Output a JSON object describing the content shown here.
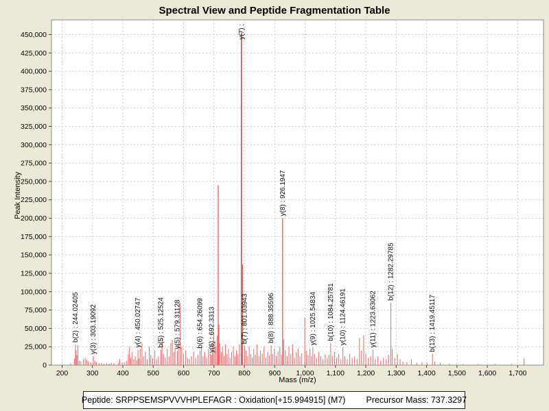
{
  "title": "Spectral View and Peptide Fragmentation Table",
  "footer": {
    "peptide_text": "Peptide: SRPPSEMSPVVVHPLEFAGR : Oxidation[+15.994915] (M7)",
    "precursor_text": "Precursor Mass: 737.3297"
  },
  "colors": {
    "background": "#ece9d8",
    "plot_background": "#ffffff",
    "grid": "#cbcbcb",
    "frame": "#8a8a8a",
    "tick": "#444444",
    "peak_strong": "#ee3a3a",
    "peak_light": "#f66e6e",
    "annotation_text": "#111111"
  },
  "chart_data": {
    "type": "bar",
    "title": "Spectral View and Peptide Fragmentation Table",
    "xlabel": "Mass (m/z)",
    "ylabel": "Peak Intensity",
    "xlim": [
      165,
      1785
    ],
    "ylim": [
      0,
      470000
    ],
    "x_axis": {
      "min": 200,
      "max": 1700,
      "tick_step": 100,
      "label": "Mass (m/z)"
    },
    "y_axis": {
      "min": 0,
      "max": 450000,
      "tick_step": 25000,
      "label": "Peak Intensity"
    },
    "grid": true,
    "annotated_peaks": [
      {
        "label": "b(2) : 244.02405",
        "mz": 244.02405,
        "intensity": 28000
      },
      {
        "label": "y(3) : 303.19092",
        "mz": 303.19092,
        "intensity": 12000
      },
      {
        "label": "y(4) : 450.02747",
        "mz": 450.02747,
        "intensity": 21000
      },
      {
        "label": "b(5) : 525.12524",
        "mz": 525.12524,
        "intensity": 21000
      },
      {
        "label": "y(5) : 579.31128",
        "mz": 579.31128,
        "intensity": 19000
      },
      {
        "label": "b(6) : 654.26099",
        "mz": 654.26099,
        "intensity": 20000
      },
      {
        "label": "y(6) : 692.3313",
        "mz": 692.3313,
        "intensity": 14000
      },
      {
        "label": "y(7) :",
        "mz": 790.4,
        "intensity": 452000
      },
      {
        "label": "b(7) : 801.03943",
        "mz": 801.03943,
        "intensity": 26000
      },
      {
        "label": "b(8) : 888.35596",
        "mz": 888.35596,
        "intensity": 27000
      },
      {
        "label": "y(8) : 926.1947",
        "mz": 926.1947,
        "intensity": 200000
      },
      {
        "label": "y(9) : 1025.54834",
        "mz": 1025.54834,
        "intensity": 24000
      },
      {
        "label": "b(10) : 1084.25781",
        "mz": 1084.25781,
        "intensity": 30000
      },
      {
        "label": "y(10) : 1124.46191",
        "mz": 1124.46191,
        "intensity": 24000
      },
      {
        "label": "y(11) : 1223.63062",
        "mz": 1223.63062,
        "intensity": 21000
      },
      {
        "label": "b(12) : 1282.29785",
        "mz": 1282.29785,
        "intensity": 85000
      },
      {
        "label": "b(13) : 1419.45117",
        "mz": 1419.45117,
        "intensity": 15000
      }
    ],
    "peaks": [
      [
        228,
        2500
      ],
      [
        241,
        9000
      ],
      [
        246,
        20000
      ],
      [
        248.5,
        13000
      ],
      [
        252,
        27000
      ],
      [
        257,
        6000
      ],
      [
        262,
        5000
      ],
      [
        270,
        8000
      ],
      [
        276,
        10000
      ],
      [
        281,
        7000
      ],
      [
        286,
        5000
      ],
      [
        295,
        4000
      ],
      [
        308,
        6000
      ],
      [
        313,
        4000
      ],
      [
        322,
        2500
      ],
      [
        330,
        3000
      ],
      [
        338,
        2000
      ],
      [
        347,
        2500
      ],
      [
        355,
        2000
      ],
      [
        362,
        3000
      ],
      [
        371,
        2500
      ],
      [
        385,
        3000
      ],
      [
        390,
        8000
      ],
      [
        398,
        3500
      ],
      [
        406,
        4000
      ],
      [
        413,
        6000
      ],
      [
        418,
        15000
      ],
      [
        422,
        25000
      ],
      [
        425.5,
        10000
      ],
      [
        430,
        18000
      ],
      [
        436,
        8000
      ],
      [
        441,
        12000
      ],
      [
        446,
        7000
      ],
      [
        453,
        9000
      ],
      [
        457,
        22000
      ],
      [
        463,
        30000
      ],
      [
        468,
        12000
      ],
      [
        474,
        18000
      ],
      [
        480,
        8000
      ],
      [
        487,
        25000
      ],
      [
        492,
        14000
      ],
      [
        498,
        10000
      ],
      [
        505,
        20000
      ],
      [
        511,
        8000
      ],
      [
        517,
        12000
      ],
      [
        529,
        37000
      ],
      [
        534,
        15000
      ],
      [
        540,
        10000
      ],
      [
        546,
        22000
      ],
      [
        552,
        12000
      ],
      [
        558,
        30000
      ],
      [
        563,
        34000
      ],
      [
        568,
        18000
      ],
      [
        572,
        24000
      ],
      [
        583,
        30000
      ],
      [
        589,
        84000
      ],
      [
        594,
        25000
      ],
      [
        600,
        15000
      ],
      [
        607,
        20000
      ],
      [
        613,
        10000
      ],
      [
        619,
        8000
      ],
      [
        626,
        12000
      ],
      [
        633,
        18000
      ],
      [
        640,
        10000
      ],
      [
        647,
        14000
      ],
      [
        659,
        25000
      ],
      [
        664,
        12000
      ],
      [
        670,
        18000
      ],
      [
        676,
        10000
      ],
      [
        682,
        22000
      ],
      [
        688,
        15000
      ],
      [
        695,
        30000
      ],
      [
        699,
        45000
      ],
      [
        703,
        33000
      ],
      [
        707,
        25000
      ],
      [
        711,
        40000
      ],
      [
        714,
        245000
      ],
      [
        716.5,
        55000
      ],
      [
        719,
        30000
      ],
      [
        724,
        18000
      ],
      [
        728,
        25000
      ],
      [
        733,
        12000
      ],
      [
        738,
        28000
      ],
      [
        743,
        15000
      ],
      [
        748,
        22000
      ],
      [
        753,
        10000
      ],
      [
        758,
        18000
      ],
      [
        764,
        25000
      ],
      [
        769,
        12000
      ],
      [
        774,
        20000
      ],
      [
        779,
        15000
      ],
      [
        784,
        28000
      ],
      [
        794.5,
        137000
      ],
      [
        806,
        20000
      ],
      [
        811,
        12000
      ],
      [
        816,
        25000
      ],
      [
        821,
        15000
      ],
      [
        826,
        10000
      ],
      [
        831,
        22000
      ],
      [
        836,
        14000
      ],
      [
        842,
        28000
      ],
      [
        848,
        12000
      ],
      [
        853,
        20000
      ],
      [
        859,
        15000
      ],
      [
        865,
        25000
      ],
      [
        871,
        10000
      ],
      [
        877,
        18000
      ],
      [
        883,
        13000
      ],
      [
        893,
        15000
      ],
      [
        899,
        22000
      ],
      [
        905,
        12000
      ],
      [
        911,
        18000
      ],
      [
        917,
        25000
      ],
      [
        922,
        14000
      ],
      [
        929.5,
        35000
      ],
      [
        935,
        20000
      ],
      [
        941,
        12000
      ],
      [
        947,
        25000
      ],
      [
        953,
        15000
      ],
      [
        959,
        28000
      ],
      [
        965,
        10000
      ],
      [
        971,
        18000
      ],
      [
        977,
        22000
      ],
      [
        983,
        12000
      ],
      [
        989,
        16000
      ],
      [
        999,
        65000
      ],
      [
        1004,
        20000
      ],
      [
        1010,
        14000
      ],
      [
        1016,
        22000
      ],
      [
        1021,
        12000
      ],
      [
        1031,
        15000
      ],
      [
        1038,
        10000
      ],
      [
        1045,
        18000
      ],
      [
        1052,
        12000
      ],
      [
        1059,
        8000
      ],
      [
        1066,
        15000
      ],
      [
        1073,
        10000
      ],
      [
        1079,
        14000
      ],
      [
        1090,
        12000
      ],
      [
        1097,
        18000
      ],
      [
        1104,
        10000
      ],
      [
        1111,
        15000
      ],
      [
        1118,
        8000
      ],
      [
        1131,
        12000
      ],
      [
        1139,
        8000
      ],
      [
        1147,
        15000
      ],
      [
        1155,
        10000
      ],
      [
        1163,
        12000
      ],
      [
        1171,
        8000
      ],
      [
        1179,
        37000
      ],
      [
        1186,
        20000
      ],
      [
        1193,
        40000
      ],
      [
        1200,
        15000
      ],
      [
        1208,
        10000
      ],
      [
        1216,
        12000
      ],
      [
        1231,
        8000
      ],
      [
        1240,
        12000
      ],
      [
        1249,
        6000
      ],
      [
        1258,
        10000
      ],
      [
        1267,
        8000
      ],
      [
        1275,
        14000
      ],
      [
        1287,
        22000
      ],
      [
        1295,
        10000
      ],
      [
        1304,
        15000
      ],
      [
        1313,
        8000
      ],
      [
        1322,
        5000
      ],
      [
        1335,
        4000
      ],
      [
        1350,
        8000
      ],
      [
        1368,
        3000
      ],
      [
        1385,
        4000
      ],
      [
        1402,
        3000
      ],
      [
        1427,
        5000
      ],
      [
        1445,
        3000
      ],
      [
        1475,
        2000
      ],
      [
        1520,
        1500
      ],
      [
        1570,
        1500
      ],
      [
        1625,
        1500
      ],
      [
        1680,
        1500
      ],
      [
        1721,
        9000
      ]
    ]
  }
}
